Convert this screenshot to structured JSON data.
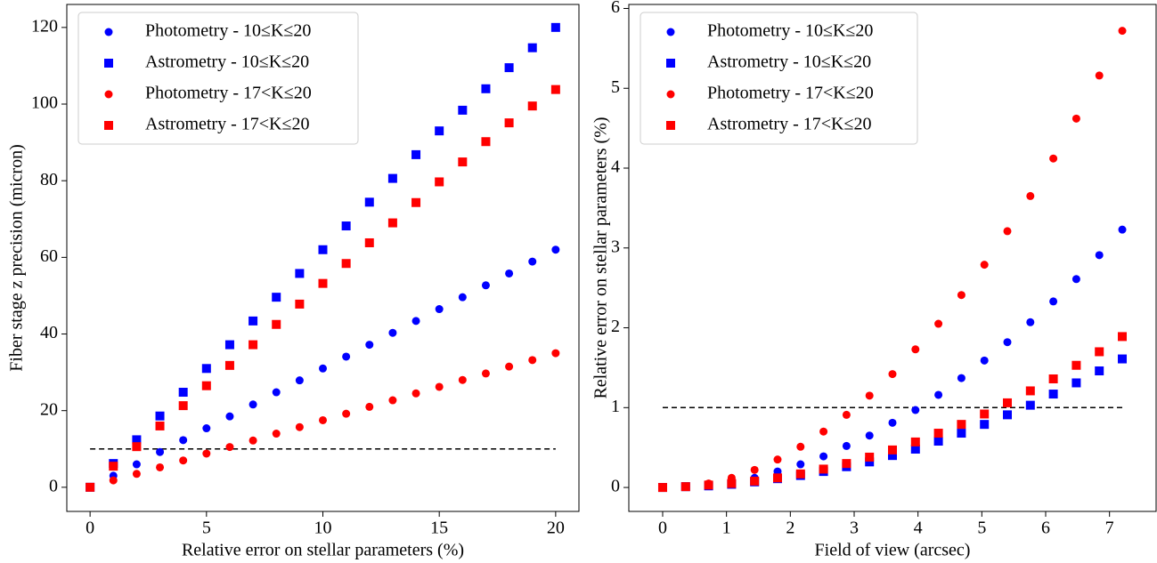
{
  "chart_data": [
    {
      "type": "scatter",
      "xlabel": "Relative error on stellar parameters (%)",
      "ylabel": "Fiber stage z precision (micron)",
      "x": [
        0,
        1,
        2,
        3,
        4,
        5,
        6,
        7,
        8,
        9,
        10,
        11,
        12,
        13,
        14,
        15,
        16,
        17,
        18,
        19,
        20
      ],
      "series": [
        {
          "name": "Photometry - 10≤K≤20",
          "color": "#0000ff",
          "marker": "circle",
          "values": [
            0,
            3,
            6,
            9.2,
            12.3,
            15.4,
            18.5,
            21.6,
            24.8,
            27.9,
            31,
            34.1,
            37.2,
            40.3,
            43.4,
            46.5,
            49.6,
            52.7,
            55.8,
            58.9,
            62
          ]
        },
        {
          "name": "Astrometry - 10≤K≤20",
          "color": "#0000ff",
          "marker": "square",
          "values": [
            0,
            6.2,
            12.4,
            18.6,
            24.8,
            31,
            37.2,
            43.4,
            49.6,
            55.8,
            62,
            68.2,
            74.4,
            80.6,
            86.8,
            93,
            98.4,
            104,
            109.5,
            114.7,
            120
          ]
        },
        {
          "name": "Photometry - 17<K≤20",
          "color": "#ff0000",
          "marker": "circle",
          "values": [
            0,
            1.8,
            3.5,
            5.2,
            7,
            8.8,
            10.5,
            12.2,
            14,
            15.7,
            17.5,
            19.2,
            21,
            22.7,
            24.5,
            26.2,
            28,
            29.7,
            31.5,
            33.2,
            35
          ]
        },
        {
          "name": "Astrometry - 17<K≤20",
          "color": "#ff0000",
          "marker": "square",
          "values": [
            0,
            5.5,
            10.6,
            16,
            21.3,
            26.5,
            31.8,
            37.2,
            42.5,
            47.8,
            53.2,
            58.4,
            63.8,
            69,
            74.3,
            79.7,
            84.9,
            90.2,
            95.1,
            99.5,
            103.8
          ]
        }
      ],
      "reference_line": {
        "y": 10,
        "x": [
          0,
          20
        ]
      },
      "xlim": [
        -1,
        21
      ],
      "xticks": [
        0,
        5,
        10,
        15,
        20
      ],
      "ylim": [
        -6.3,
        126
      ],
      "yticks": [
        0,
        20,
        40,
        60,
        80,
        100,
        120
      ],
      "legend": "upper left"
    },
    {
      "type": "scatter",
      "xlabel": "Field of view (arcsec)",
      "ylabel": "Relative error on stellar parameters (%)",
      "x": [
        0,
        0.36,
        0.72,
        1.08,
        1.44,
        1.8,
        2.16,
        2.52,
        2.88,
        3.24,
        3.6,
        3.96,
        4.32,
        4.68,
        5.04,
        5.4,
        5.76,
        6.12,
        6.48,
        6.84,
        7.2
      ],
      "series": [
        {
          "name": "Photometry - 10≤K≤20",
          "color": "#0000ff",
          "marker": "circle",
          "values": [
            0,
            0.01,
            0.03,
            0.07,
            0.12,
            0.2,
            0.29,
            0.39,
            0.52,
            0.65,
            0.81,
            0.97,
            1.16,
            1.37,
            1.59,
            1.82,
            2.07,
            2.33,
            2.61,
            2.91,
            3.23
          ]
        },
        {
          "name": "Astrometry - 10≤K≤20",
          "color": "#0000ff",
          "marker": "square",
          "values": [
            0,
            0.01,
            0.02,
            0.04,
            0.07,
            0.11,
            0.15,
            0.2,
            0.26,
            0.32,
            0.4,
            0.48,
            0.58,
            0.68,
            0.79,
            0.91,
            1.03,
            1.17,
            1.31,
            1.46,
            1.61
          ]
        },
        {
          "name": "Photometry - 17<K≤20",
          "color": "#ff0000",
          "marker": "circle",
          "values": [
            0,
            0.01,
            0.05,
            0.12,
            0.22,
            0.35,
            0.51,
            0.7,
            0.91,
            1.15,
            1.42,
            1.73,
            2.05,
            2.41,
            2.79,
            3.21,
            3.65,
            4.12,
            4.62,
            5.16,
            5.72
          ]
        },
        {
          "name": "Astrometry - 17<K≤20",
          "color": "#ff0000",
          "marker": "square",
          "values": [
            0,
            0.01,
            0.03,
            0.05,
            0.08,
            0.12,
            0.17,
            0.23,
            0.3,
            0.38,
            0.47,
            0.57,
            0.68,
            0.79,
            0.92,
            1.06,
            1.21,
            1.36,
            1.53,
            1.7,
            1.89
          ]
        }
      ],
      "reference_line": {
        "y": 1,
        "x": [
          0,
          7.2
        ]
      },
      "xlim": [
        -0.53,
        7.73
      ],
      "xticks": [
        0,
        1,
        2,
        3,
        4,
        5,
        6,
        7
      ],
      "ylim": [
        -0.3,
        6.05
      ],
      "yticks": [
        0,
        1,
        2,
        3,
        4,
        5,
        6
      ],
      "legend": "upper left"
    }
  ]
}
